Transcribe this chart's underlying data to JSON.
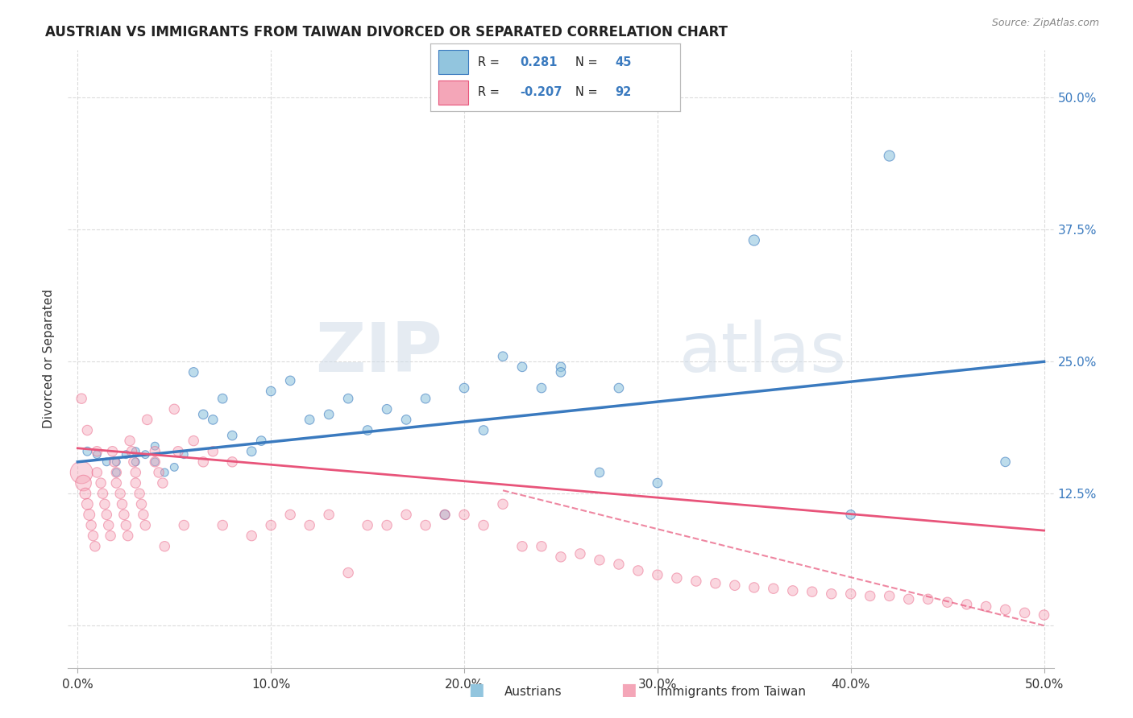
{
  "title": "AUSTRIAN VS IMMIGRANTS FROM TAIWAN DIVORCED OR SEPARATED CORRELATION CHART",
  "source": "Source: ZipAtlas.com",
  "ylabel": "Divorced or Separated",
  "ytick_values": [
    0.0,
    0.125,
    0.25,
    0.375,
    0.5
  ],
  "xtick_values": [
    0.0,
    0.1,
    0.2,
    0.3,
    0.4,
    0.5
  ],
  "xlim": [
    -0.005,
    0.505
  ],
  "ylim": [
    -0.04,
    0.545
  ],
  "legend_r_austrians": "0.281",
  "legend_n_austrians": "45",
  "legend_r_taiwan": "-0.207",
  "legend_n_taiwan": "92",
  "watermark": "ZIPatlas",
  "blue_color": "#92c5de",
  "pink_color": "#f4a6b8",
  "blue_fill": "#92c5de",
  "pink_fill": "#f4a6b8",
  "blue_line_color": "#3a7abf",
  "pink_line_color": "#e8547a",
  "blue_scatter": {
    "x": [
      0.005,
      0.01,
      0.015,
      0.02,
      0.02,
      0.025,
      0.03,
      0.03,
      0.035,
      0.04,
      0.04,
      0.045,
      0.05,
      0.055,
      0.06,
      0.065,
      0.07,
      0.075,
      0.08,
      0.09,
      0.095,
      0.1,
      0.11,
      0.12,
      0.13,
      0.14,
      0.15,
      0.16,
      0.17,
      0.18,
      0.19,
      0.2,
      0.21,
      0.22,
      0.23,
      0.24,
      0.25,
      0.27,
      0.28,
      0.3,
      0.35,
      0.4,
      0.42,
      0.48,
      0.25
    ],
    "y": [
      0.165,
      0.162,
      0.155,
      0.155,
      0.145,
      0.162,
      0.155,
      0.165,
      0.162,
      0.17,
      0.155,
      0.145,
      0.15,
      0.162,
      0.24,
      0.2,
      0.195,
      0.215,
      0.18,
      0.165,
      0.175,
      0.222,
      0.232,
      0.195,
      0.2,
      0.215,
      0.185,
      0.205,
      0.195,
      0.215,
      0.105,
      0.225,
      0.185,
      0.255,
      0.245,
      0.225,
      0.245,
      0.145,
      0.225,
      0.135,
      0.365,
      0.105,
      0.445,
      0.155,
      0.24
    ],
    "sizes": [
      60,
      50,
      50,
      50,
      50,
      50,
      50,
      50,
      50,
      50,
      50,
      50,
      50,
      50,
      70,
      70,
      70,
      70,
      70,
      70,
      70,
      70,
      70,
      70,
      70,
      70,
      70,
      70,
      70,
      70,
      70,
      70,
      70,
      70,
      70,
      70,
      70,
      70,
      70,
      70,
      90,
      70,
      90,
      70,
      70
    ]
  },
  "pink_scatter": {
    "x": [
      0.002,
      0.003,
      0.004,
      0.005,
      0.006,
      0.007,
      0.008,
      0.009,
      0.01,
      0.01,
      0.012,
      0.013,
      0.014,
      0.015,
      0.016,
      0.017,
      0.018,
      0.019,
      0.02,
      0.02,
      0.022,
      0.023,
      0.024,
      0.025,
      0.026,
      0.027,
      0.028,
      0.029,
      0.03,
      0.03,
      0.032,
      0.033,
      0.034,
      0.035,
      0.036,
      0.04,
      0.04,
      0.042,
      0.044,
      0.045,
      0.05,
      0.052,
      0.055,
      0.06,
      0.065,
      0.07,
      0.075,
      0.08,
      0.09,
      0.1,
      0.11,
      0.12,
      0.13,
      0.14,
      0.15,
      0.16,
      0.17,
      0.18,
      0.19,
      0.2,
      0.21,
      0.22,
      0.23,
      0.24,
      0.25,
      0.26,
      0.27,
      0.28,
      0.29,
      0.3,
      0.31,
      0.32,
      0.33,
      0.34,
      0.35,
      0.36,
      0.37,
      0.38,
      0.39,
      0.4,
      0.41,
      0.42,
      0.43,
      0.44,
      0.45,
      0.46,
      0.47,
      0.48,
      0.49,
      0.5,
      0.002,
      0.005
    ],
    "y": [
      0.145,
      0.135,
      0.125,
      0.115,
      0.105,
      0.095,
      0.085,
      0.075,
      0.145,
      0.165,
      0.135,
      0.125,
      0.115,
      0.105,
      0.095,
      0.085,
      0.165,
      0.155,
      0.145,
      0.135,
      0.125,
      0.115,
      0.105,
      0.095,
      0.085,
      0.175,
      0.165,
      0.155,
      0.145,
      0.135,
      0.125,
      0.115,
      0.105,
      0.095,
      0.195,
      0.165,
      0.155,
      0.145,
      0.135,
      0.075,
      0.205,
      0.165,
      0.095,
      0.175,
      0.155,
      0.165,
      0.095,
      0.155,
      0.085,
      0.095,
      0.105,
      0.095,
      0.105,
      0.05,
      0.095,
      0.095,
      0.105,
      0.095,
      0.105,
      0.105,
      0.095,
      0.115,
      0.075,
      0.075,
      0.065,
      0.068,
      0.062,
      0.058,
      0.052,
      0.048,
      0.045,
      0.042,
      0.04,
      0.038,
      0.036,
      0.035,
      0.033,
      0.032,
      0.03,
      0.03,
      0.028,
      0.028,
      0.025,
      0.025,
      0.022,
      0.02,
      0.018,
      0.015,
      0.012,
      0.01,
      0.215,
      0.185
    ],
    "sizes": [
      400,
      200,
      100,
      100,
      100,
      80,
      80,
      80,
      80,
      80,
      80,
      80,
      80,
      80,
      80,
      80,
      80,
      80,
      80,
      80,
      80,
      80,
      80,
      80,
      80,
      80,
      80,
      80,
      80,
      80,
      80,
      80,
      80,
      80,
      80,
      80,
      80,
      80,
      80,
      80,
      80,
      80,
      80,
      80,
      80,
      80,
      80,
      80,
      80,
      80,
      80,
      80,
      80,
      80,
      80,
      80,
      80,
      80,
      80,
      80,
      80,
      80,
      80,
      80,
      80,
      80,
      80,
      80,
      80,
      80,
      80,
      80,
      80,
      80,
      80,
      80,
      80,
      80,
      80,
      80,
      80,
      80,
      80,
      80,
      80,
      80,
      80,
      80,
      80,
      80,
      80,
      80
    ]
  },
  "blue_regression": {
    "x_start": 0.0,
    "y_start": 0.155,
    "x_end": 0.5,
    "y_end": 0.25
  },
  "pink_regression": {
    "x_start": 0.0,
    "y_start": 0.168,
    "x_end": 0.5,
    "y_end": 0.09
  },
  "pink_regression_dashed": {
    "x_start": 0.22,
    "y_start": 0.128,
    "x_end": 0.5,
    "y_end": 0.0
  },
  "background_color": "#ffffff",
  "grid_color": "#cccccc"
}
